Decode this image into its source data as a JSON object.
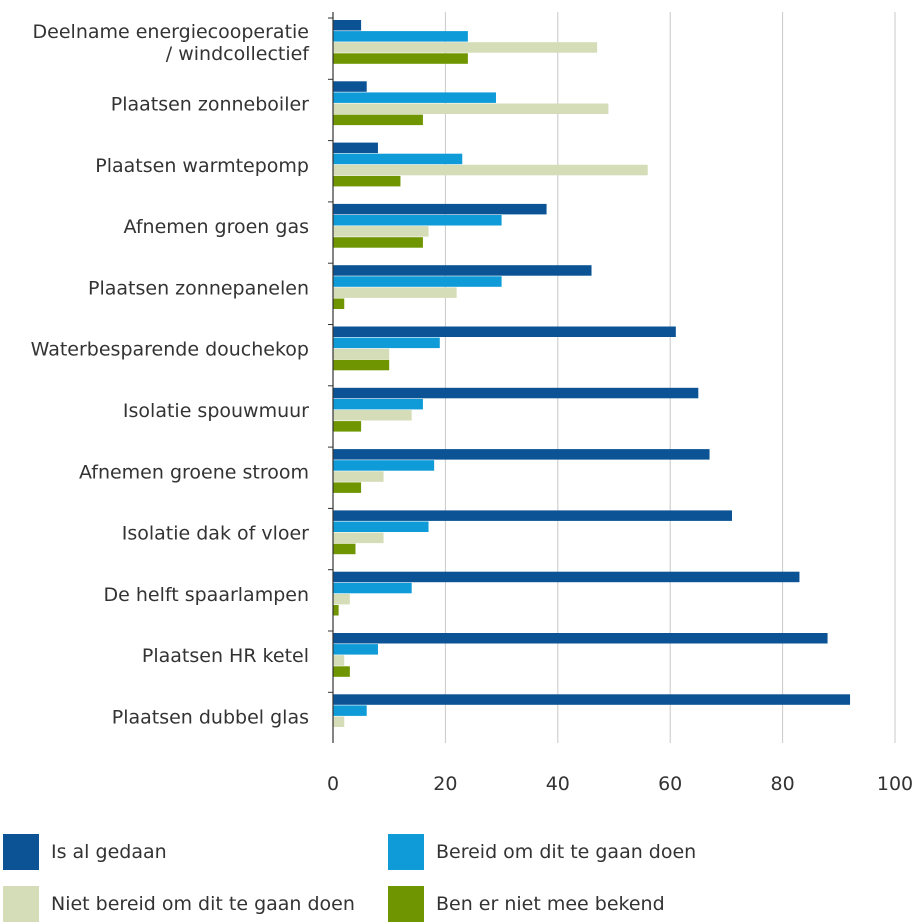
{
  "chart_data": {
    "type": "bar",
    "orientation": "horizontal",
    "categories": [
      [
        "Deelname energiecooperatie",
        "/ windcollectief"
      ],
      [
        "Plaatsen zonneboiler"
      ],
      [
        "Plaatsen warmtepomp"
      ],
      [
        "Afnemen groen gas"
      ],
      [
        "Plaatsen zonnepanelen"
      ],
      [
        "Waterbesparende douchekop"
      ],
      [
        "Isolatie spouwmuur"
      ],
      [
        "Afnemen groene stroom"
      ],
      [
        "Isolatie dak of vloer"
      ],
      [
        "De helft spaarlampen"
      ],
      [
        "Plaatsen HR ketel"
      ],
      [
        "Plaatsen dubbel glas"
      ]
    ],
    "series": [
      {
        "name": "Is al gedaan",
        "color": "#0b5394",
        "values": [
          5,
          6,
          8,
          38,
          46,
          61,
          65,
          67,
          71,
          83,
          88,
          92
        ]
      },
      {
        "name": "Bereid om dit te gaan doen",
        "color": "#0e9bd8",
        "values": [
          24,
          29,
          23,
          30,
          30,
          19,
          16,
          18,
          17,
          14,
          8,
          6
        ]
      },
      {
        "name": "Niet bereid om dit te gaan doen",
        "color": "#d4ddb7",
        "values": [
          47,
          49,
          56,
          17,
          22,
          10,
          14,
          9,
          9,
          3,
          2,
          2
        ]
      },
      {
        "name": "Ben er niet mee bekend",
        "color": "#6f9500",
        "values": [
          24,
          16,
          12,
          16,
          2,
          10,
          5,
          5,
          4,
          1,
          3,
          0
        ]
      }
    ],
    "xlim": [
      0,
      100
    ],
    "xticks": [
      0,
      20,
      40,
      60,
      80,
      100
    ],
    "grid": "vertical",
    "legend": "bottom"
  }
}
